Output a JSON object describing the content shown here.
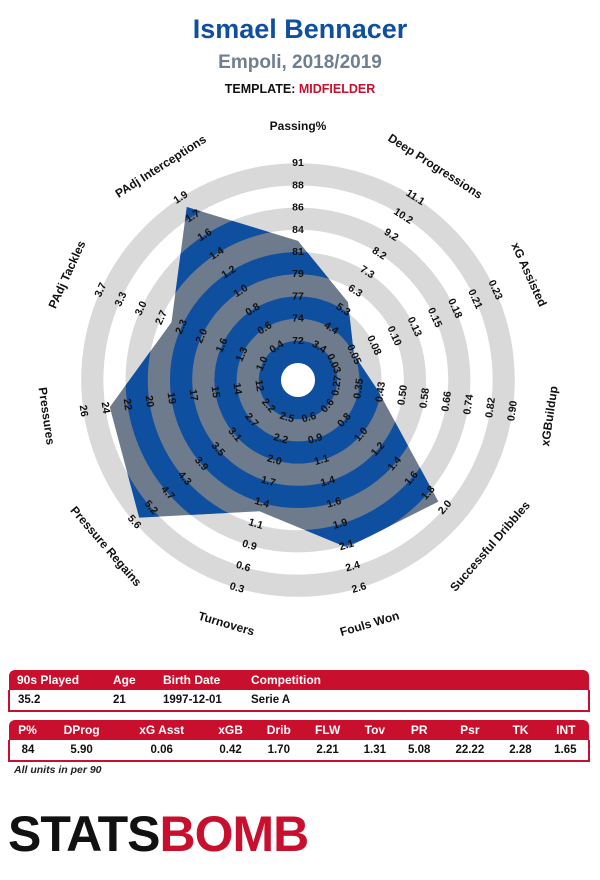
{
  "header": {
    "player_name": "Ismael Bennacer",
    "team_season": "Empoli, 2018/2019",
    "template_label": "TEMPLATE:",
    "template_value": "MIDFIELDER"
  },
  "colors": {
    "player_fill": "#0f4fa0",
    "overlay_gray": "#6e7b8c",
    "ring_gray": "#d9d9d9",
    "accent_red": "#c8102e"
  },
  "chart_data": {
    "type": "radar",
    "ring_count": 5,
    "axes": [
      {
        "label": "Passing%",
        "ticks": [
          "72",
          "74",
          "77",
          "79",
          "81",
          "84",
          "86",
          "88",
          "91"
        ],
        "value": 84,
        "fraction": 0.55
      },
      {
        "label": "Deep Progressions",
        "ticks": [
          "3.4",
          "4.4",
          "5.3",
          "6.3",
          "7.3",
          "8.2",
          "9.2",
          "10.2",
          "11.1"
        ],
        "value": 5.9,
        "fraction": 0.34
      },
      {
        "label": "xG Assisted",
        "ticks": [
          "0.03",
          "0.05",
          "0.08",
          "0.10",
          "0.13",
          "0.15",
          "0.18",
          "0.21",
          "0.23"
        ],
        "value": 0.06,
        "fraction": 0.2
      },
      {
        "label": "xGBuildup",
        "ticks": [
          "0.27",
          "0.35",
          "0.43",
          "0.50",
          "0.58",
          "0.66",
          "0.74",
          "0.82",
          "0.90"
        ],
        "value": 0.42,
        "fraction": 0.29
      },
      {
        "label": "Successful Dribbles",
        "ticks": [
          "0.6",
          "0.8",
          "1.0",
          "1.2",
          "1.4",
          "1.6",
          "1.8",
          "2.0"
        ],
        "value": 1.7,
        "fraction": 0.76
      },
      {
        "label": "Fouls Won",
        "ticks": [
          "0.6",
          "0.9",
          "1.1",
          "1.4",
          "1.6",
          "1.9",
          "2.1",
          "2.4",
          "2.6"
        ],
        "value": 2.21,
        "fraction": 0.71
      },
      {
        "label": "Turnovers",
        "ticks": [
          "2.5",
          "2.2",
          "2.0",
          "1.7",
          "1.4",
          "1.1",
          "0.9",
          "0.6",
          "0.3"
        ],
        "value": 1.31,
        "fraction": 0.54
      },
      {
        "label": "Pressure Regains",
        "ticks": [
          "2.2",
          "2.7",
          "3.1",
          "3.5",
          "3.9",
          "4.3",
          "4.7",
          "5.2",
          "5.6"
        ],
        "value": 5.08,
        "fraction": 0.87
      },
      {
        "label": "Pressures",
        "ticks": [
          "12",
          "14",
          "15",
          "17",
          "19",
          "20",
          "22",
          "24",
          "26"
        ],
        "value": 22.22,
        "fraction": 0.78
      },
      {
        "label": "PAdj Tackles",
        "ticks": [
          "1.0",
          "1.3",
          "1.6",
          "2.0",
          "2.3",
          "2.7",
          "3.0",
          "3.3",
          "3.7"
        ],
        "value": 2.28,
        "fraction": 0.55
      },
      {
        "label": "PAdj Interceptions",
        "ticks": [
          "0.4",
          "0.6",
          "0.8",
          "1.0",
          "1.2",
          "1.4",
          "1.6",
          "1.7",
          "1.9"
        ],
        "value": 1.65,
        "fraction": 0.85
      }
    ]
  },
  "info_table": {
    "headers": [
      "90s Played",
      "Age",
      "Birth Date",
      "Competition",
      ""
    ],
    "row": [
      "35.2",
      "21",
      "1997-12-01",
      "Serie A",
      ""
    ]
  },
  "stats_table": {
    "headers": [
      "P%",
      "DProg",
      "xG Asst",
      "xGB",
      "Drib",
      "FLW",
      "Tov",
      "PR",
      "Psr",
      "TK",
      "INT"
    ],
    "row": [
      "84",
      "5.90",
      "0.06",
      "0.42",
      "1.70",
      "2.21",
      "1.31",
      "5.08",
      "22.22",
      "2.28",
      "1.65"
    ]
  },
  "footnote": "All units in per 90",
  "logo": {
    "part1": "STATS",
    "part2": "BOMB"
  }
}
